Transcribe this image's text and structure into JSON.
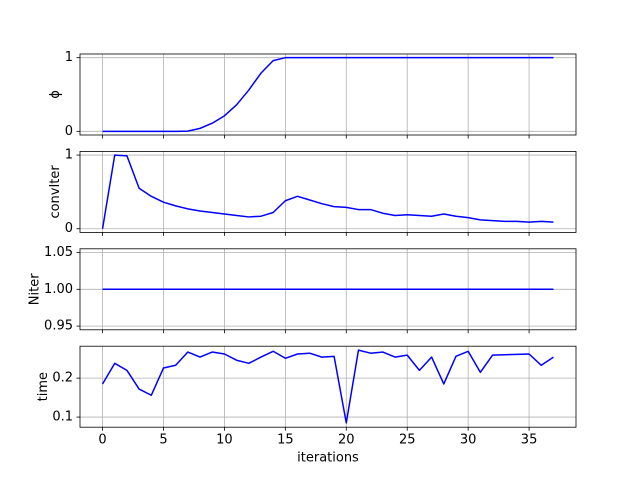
{
  "chart_data": [
    {
      "type": "line",
      "ylabel": "ϕ",
      "x": [
        0,
        1,
        2,
        3,
        4,
        5,
        6,
        7,
        8,
        9,
        10,
        11,
        12,
        13,
        14,
        15,
        16,
        17,
        18,
        19,
        20,
        21,
        22,
        23,
        24,
        25,
        26,
        27,
        28,
        29,
        30,
        31,
        32,
        33,
        34,
        35,
        36,
        37
      ],
      "values": [
        0,
        0,
        0,
        0,
        0,
        0,
        0,
        0.003,
        0.04,
        0.11,
        0.21,
        0.36,
        0.56,
        0.79,
        0.96,
        1.0,
        1.0,
        1.0,
        1.0,
        1.0,
        1.0,
        1.0,
        1.0,
        1.0,
        1.0,
        1.0,
        1.0,
        1.0,
        1.0,
        1.0,
        1.0,
        1.0,
        1.0,
        1.0,
        1.0,
        1.0,
        1.0,
        1.0
      ],
      "color": "#0000ff",
      "xlim": [
        -1.85,
        38.85
      ],
      "xticks": [
        0,
        5,
        10,
        15,
        20,
        25,
        30,
        35
      ],
      "ylim": [
        -0.05,
        1.05
      ],
      "yticks": [
        0,
        1
      ],
      "grid": true
    },
    {
      "type": "line",
      "ylabel": "convIter",
      "x": [
        0,
        1,
        2,
        3,
        4,
        5,
        6,
        7,
        8,
        9,
        10,
        11,
        12,
        13,
        14,
        15,
        16,
        17,
        18,
        19,
        20,
        21,
        22,
        23,
        24,
        25,
        26,
        27,
        28,
        29,
        30,
        31,
        32,
        33,
        34,
        35,
        36,
        37
      ],
      "values": [
        0,
        1.0,
        0.99,
        0.55,
        0.44,
        0.36,
        0.31,
        0.27,
        0.24,
        0.22,
        0.2,
        0.18,
        0.16,
        0.17,
        0.22,
        0.38,
        0.44,
        0.39,
        0.34,
        0.3,
        0.29,
        0.26,
        0.26,
        0.21,
        0.18,
        0.19,
        0.18,
        0.17,
        0.2,
        0.17,
        0.15,
        0.12,
        0.11,
        0.1,
        0.1,
        0.09,
        0.1,
        0.09
      ],
      "color": "#0000ff",
      "xlim": [
        -1.85,
        38.85
      ],
      "xticks": [
        0,
        5,
        10,
        15,
        20,
        25,
        30,
        35
      ],
      "ylim": [
        -0.05,
        1.05
      ],
      "yticks": [
        0,
        1
      ],
      "grid": true
    },
    {
      "type": "line",
      "ylabel": "Niter",
      "x": [
        0,
        1,
        2,
        3,
        4,
        5,
        6,
        7,
        8,
        9,
        10,
        11,
        12,
        13,
        14,
        15,
        16,
        17,
        18,
        19,
        20,
        21,
        22,
        23,
        24,
        25,
        26,
        27,
        28,
        29,
        30,
        31,
        32,
        33,
        34,
        35,
        36,
        37
      ],
      "values": [
        1,
        1,
        1,
        1,
        1,
        1,
        1,
        1,
        1,
        1,
        1,
        1,
        1,
        1,
        1,
        1,
        1,
        1,
        1,
        1,
        1,
        1,
        1,
        1,
        1,
        1,
        1,
        1,
        1,
        1,
        1,
        1,
        1,
        1,
        1,
        1,
        1,
        1
      ],
      "color": "#0000ff",
      "xlim": [
        -1.85,
        38.85
      ],
      "xticks": [
        0,
        5,
        10,
        15,
        20,
        25,
        30,
        35
      ],
      "ylim": [
        0.945,
        1.055
      ],
      "yticks": [
        0.95,
        {
          "value": 1,
          "label": "1.00"
        },
        1.05
      ],
      "grid": true
    },
    {
      "type": "line",
      "ylabel": "time",
      "xlabel": "iterations",
      "x": [
        0,
        1,
        2,
        3,
        4,
        5,
        6,
        7,
        8,
        9,
        10,
        11,
        12,
        13,
        14,
        15,
        16,
        17,
        18,
        19,
        20,
        21,
        22,
        23,
        24,
        25,
        26,
        27,
        28,
        29,
        30,
        31,
        32,
        33,
        34,
        35,
        36,
        37
      ],
      "values": [
        0.185,
        0.238,
        0.22,
        0.172,
        0.156,
        0.226,
        0.233,
        0.267,
        0.254,
        0.267,
        0.262,
        0.246,
        0.238,
        0.254,
        0.269,
        0.251,
        0.262,
        0.264,
        0.254,
        0.256,
        0.085,
        0.272,
        0.264,
        0.267,
        0.254,
        0.259,
        0.22,
        0.254,
        0.185,
        0.256,
        0.269,
        0.215,
        0.259,
        0.26,
        0.261,
        0.262,
        0.233,
        0.254
      ],
      "color": "#0000ff",
      "xlim": [
        -1.85,
        38.85
      ],
      "xticks": [
        0,
        5,
        10,
        15,
        20,
        25,
        30,
        35
      ],
      "ylim": [
        0.074,
        0.282
      ],
      "yticks": [
        0.1,
        0.2
      ],
      "grid": true
    }
  ]
}
